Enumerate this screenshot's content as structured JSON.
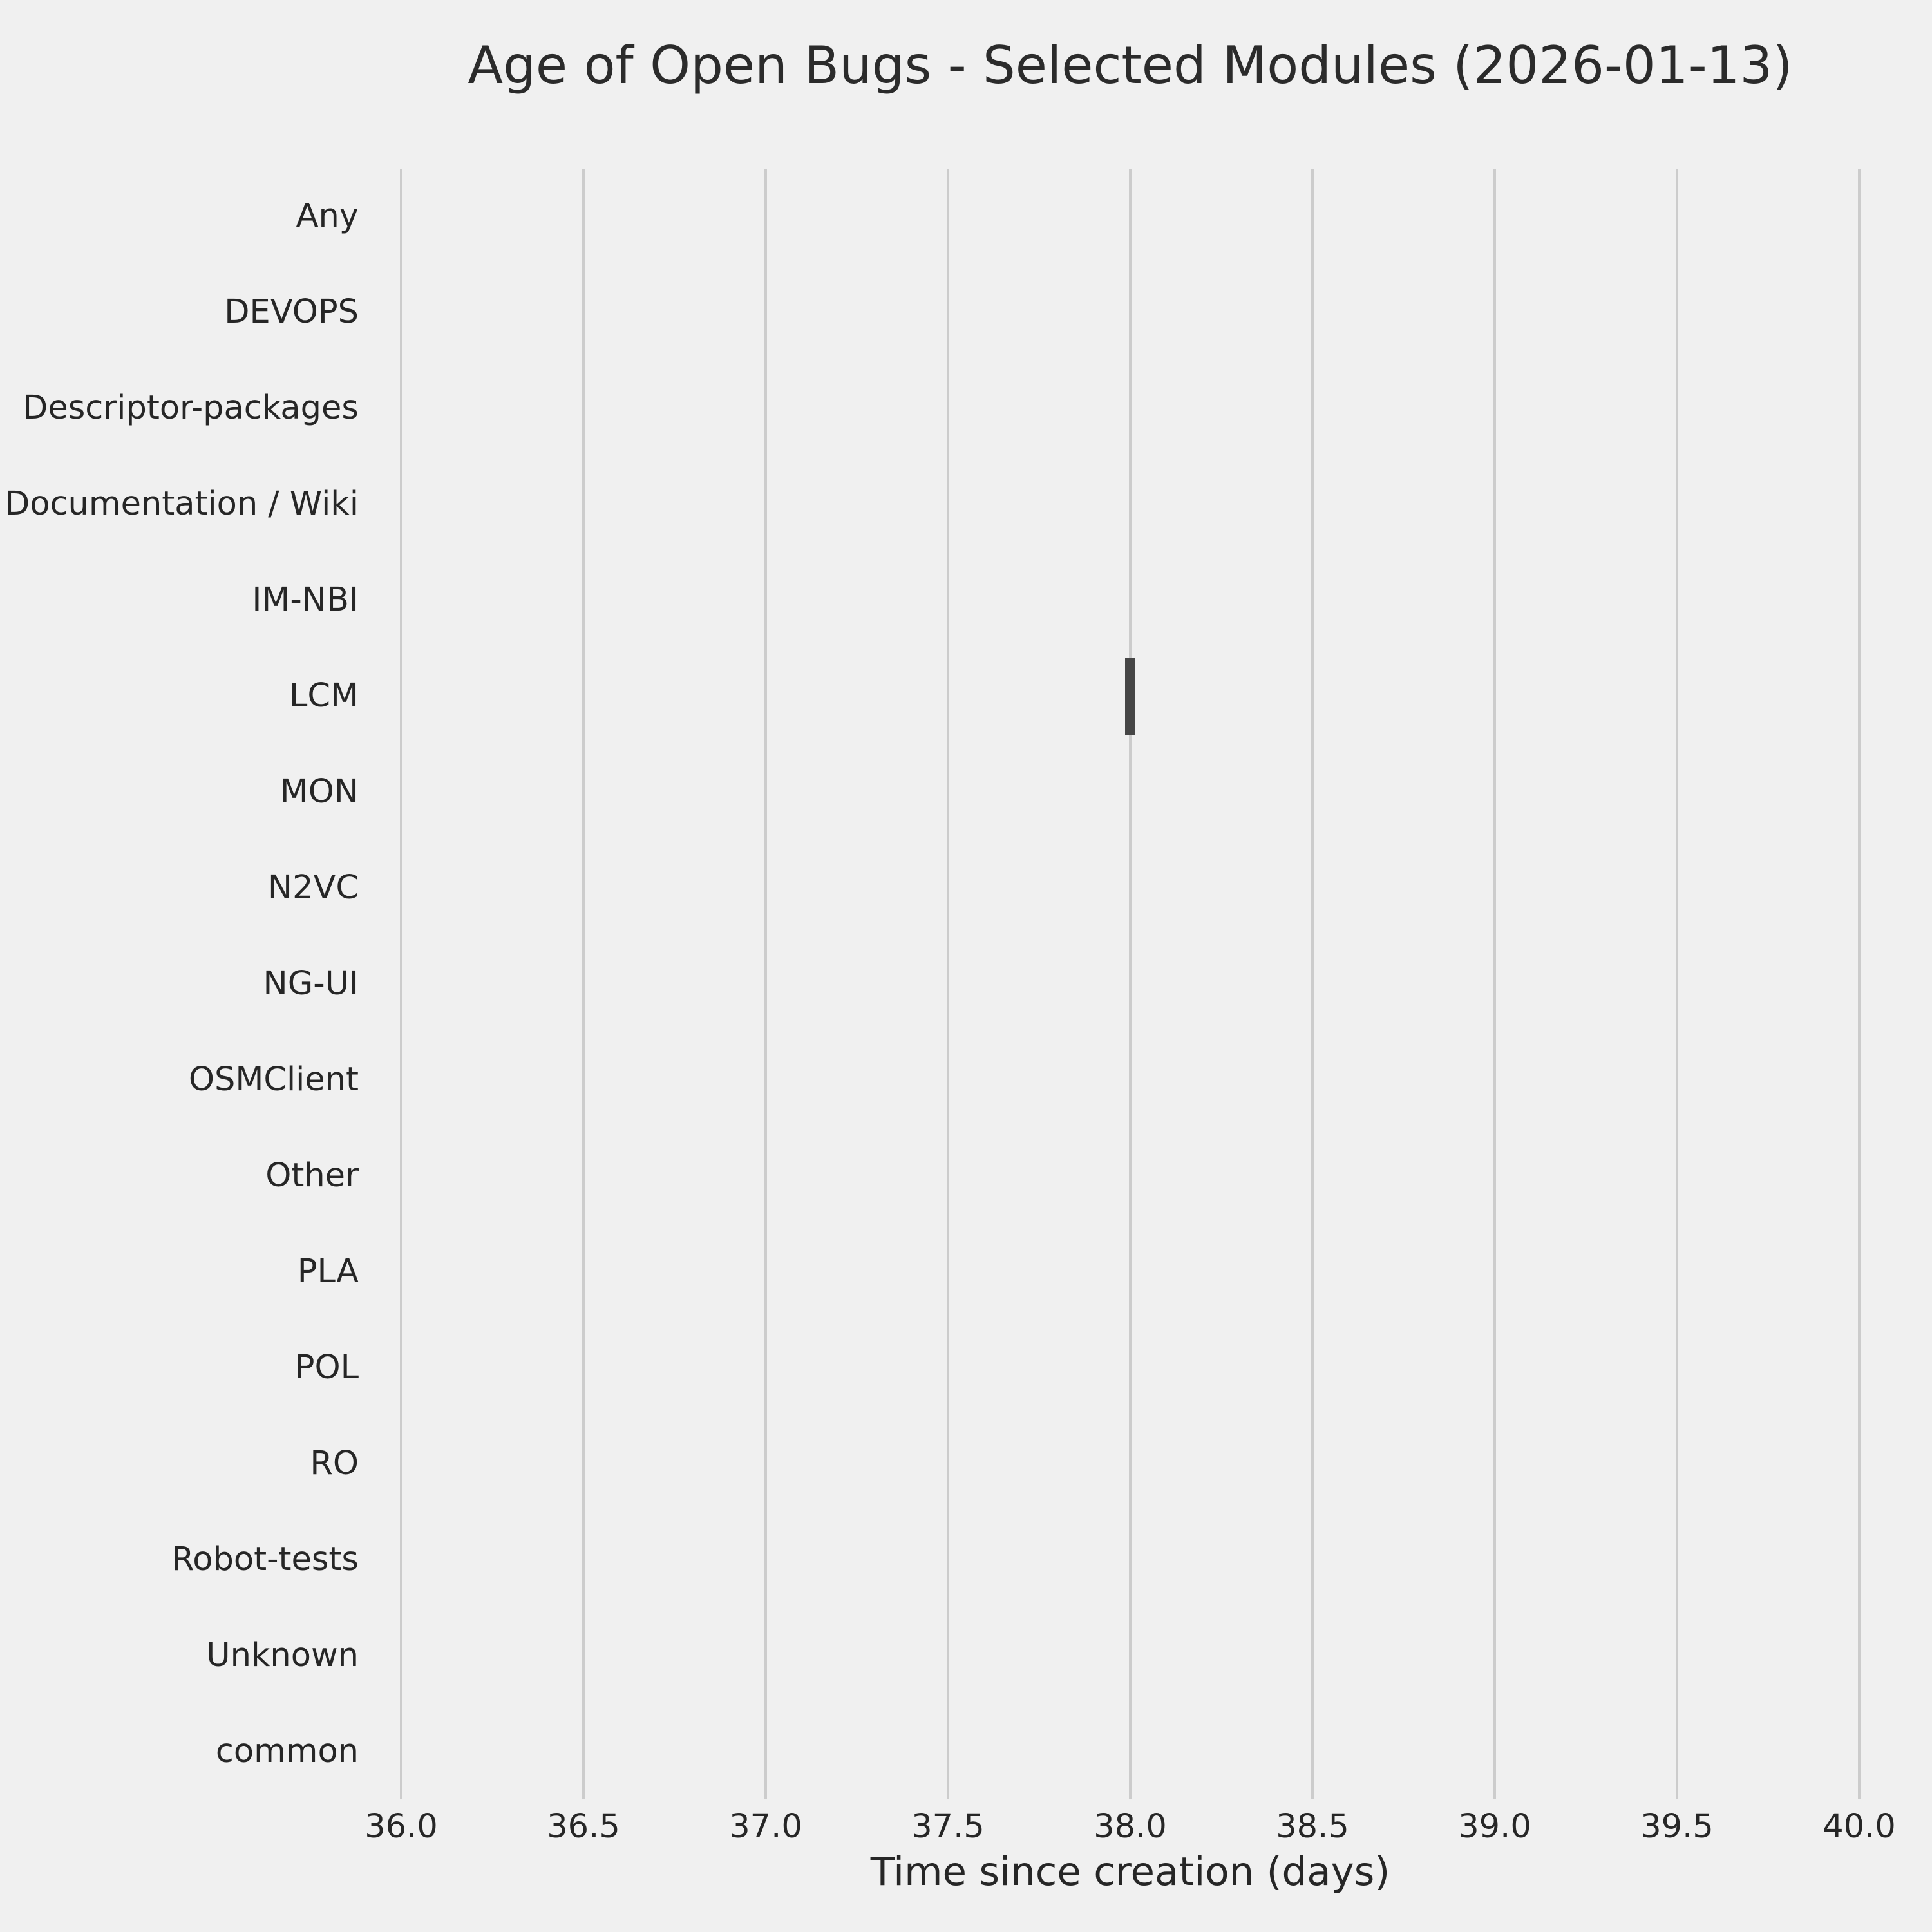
{
  "colors": {
    "background": "#f0f0f0",
    "grid": "#cccccc",
    "box_fill": "#464646",
    "text": "#262626"
  },
  "chart_data": {
    "type": "boxplot",
    "orientation": "horizontal",
    "title": "Age of Open Bugs - Selected Modules (2026-01-13)",
    "xlabel": "Time since creation (days)",
    "ylabel": "",
    "xlim": [
      36.0,
      40.0
    ],
    "xtick_labels": [
      "36.0",
      "36.5",
      "37.0",
      "37.5",
      "38.0",
      "38.5",
      "39.0",
      "39.5",
      "40.0"
    ],
    "grid": "vertical-only",
    "legend": "none",
    "categories": [
      "Any",
      "DEVOPS",
      "Descriptor-packages",
      "Documentation / Wiki",
      "IM-NBI",
      "LCM",
      "MON",
      "N2VC",
      "NG-UI",
      "OSMClient",
      "Other",
      "PLA",
      "POL",
      "RO",
      "Robot-tests",
      "Unknown",
      "common"
    ],
    "series": [
      {
        "category": "LCM",
        "value": 38.0,
        "box_xmin": 37.985,
        "box_xmax": 38.015
      }
    ]
  }
}
